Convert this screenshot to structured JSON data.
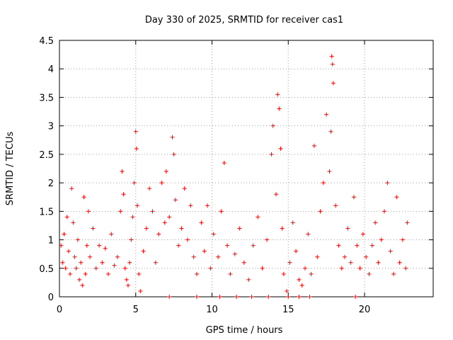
{
  "chart_data": {
    "type": "scatter",
    "title": "Day 330 of 2025, SRMTID for receiver cas1",
    "xlabel": "GPS time / hours",
    "ylabel": "SRMTID / TECUs",
    "xlim": [
      0,
      24.5
    ],
    "ylim": [
      0,
      4.5
    ],
    "xticks": [
      0,
      5,
      10,
      15,
      20
    ],
    "xtick_labels": [
      "0",
      "5",
      "10",
      "15",
      "20"
    ],
    "yticks": [
      0,
      0.5,
      1,
      1.5,
      2,
      2.5,
      3,
      3.5,
      4,
      4.5
    ],
    "ytick_labels": [
      "0",
      "0.5",
      "1",
      "1.5",
      "2",
      "2.5",
      "3",
      "3.5",
      "4",
      "4.5"
    ],
    "grid": true,
    "marker": "+",
    "color": "#ff0000",
    "series": [
      {
        "name": "cas1",
        "points": [
          [
            0.1,
            0.9
          ],
          [
            0.2,
            0.6
          ],
          [
            0.3,
            1.1
          ],
          [
            0.4,
            0.5
          ],
          [
            0.5,
            1.4
          ],
          [
            0.6,
            0.8
          ],
          [
            0.7,
            0.4
          ],
          [
            0.8,
            1.9
          ],
          [
            0.9,
            1.3
          ],
          [
            1.0,
            0.7
          ],
          [
            1.1,
            0.5
          ],
          [
            1.2,
            1.0
          ],
          [
            1.3,
            0.3
          ],
          [
            1.4,
            0.6
          ],
          [
            1.5,
            0.2
          ],
          [
            1.6,
            1.75
          ],
          [
            1.7,
            0.4
          ],
          [
            1.8,
            0.9
          ],
          [
            1.9,
            1.5
          ],
          [
            2.0,
            0.7
          ],
          [
            2.2,
            1.2
          ],
          [
            2.4,
            0.5
          ],
          [
            2.6,
            0.9
          ],
          [
            2.8,
            0.6
          ],
          [
            3.0,
            0.85
          ],
          [
            3.2,
            0.4
          ],
          [
            3.4,
            1.1
          ],
          [
            3.6,
            0.55
          ],
          [
            3.8,
            0.7
          ],
          [
            4.0,
            1.5
          ],
          [
            4.1,
            2.2
          ],
          [
            4.2,
            1.8
          ],
          [
            4.3,
            0.5
          ],
          [
            4.4,
            0.3
          ],
          [
            4.5,
            0.2
          ],
          [
            4.6,
            0.6
          ],
          [
            4.7,
            1.0
          ],
          [
            4.8,
            1.4
          ],
          [
            4.9,
            2.0
          ],
          [
            5.0,
            2.9
          ],
          [
            5.05,
            2.6
          ],
          [
            5.1,
            1.6
          ],
          [
            5.2,
            0.4
          ],
          [
            5.3,
            0.1
          ],
          [
            5.5,
            0.8
          ],
          [
            5.7,
            1.2
          ],
          [
            5.9,
            1.9
          ],
          [
            6.1,
            1.5
          ],
          [
            6.3,
            0.6
          ],
          [
            6.5,
            1.1
          ],
          [
            6.7,
            2.0
          ],
          [
            6.9,
            1.3
          ],
          [
            7.0,
            2.2
          ],
          [
            7.2,
            1.4
          ],
          [
            7.4,
            2.8
          ],
          [
            7.5,
            2.5
          ],
          [
            7.6,
            1.7
          ],
          [
            7.8,
            0.9
          ],
          [
            8.0,
            1.2
          ],
          [
            8.2,
            1.9
          ],
          [
            8.4,
            1.0
          ],
          [
            8.6,
            1.6
          ],
          [
            8.8,
            0.7
          ],
          [
            9.0,
            0.4
          ],
          [
            9.3,
            1.3
          ],
          [
            9.5,
            0.8
          ],
          [
            9.7,
            1.6
          ],
          [
            9.9,
            0.5
          ],
          [
            10.1,
            1.1
          ],
          [
            10.4,
            0.7
          ],
          [
            10.6,
            1.5
          ],
          [
            10.8,
            2.35
          ],
          [
            11.0,
            0.9
          ],
          [
            11.2,
            0.4
          ],
          [
            11.5,
            0.75
          ],
          [
            11.8,
            1.2
          ],
          [
            12.1,
            0.6
          ],
          [
            12.4,
            0.3
          ],
          [
            12.7,
            0.9
          ],
          [
            13.0,
            1.4
          ],
          [
            13.3,
            0.5
          ],
          [
            13.6,
            1.0
          ],
          [
            13.9,
            2.5
          ],
          [
            14.0,
            3.0
          ],
          [
            14.2,
            1.8
          ],
          [
            14.3,
            3.55
          ],
          [
            14.4,
            3.3
          ],
          [
            14.5,
            2.6
          ],
          [
            14.6,
            1.2
          ],
          [
            14.7,
            0.4
          ],
          [
            14.9,
            0.1
          ],
          [
            15.1,
            0.6
          ],
          [
            15.3,
            1.3
          ],
          [
            15.5,
            0.8
          ],
          [
            15.7,
            0.3
          ],
          [
            15.9,
            0.2
          ],
          [
            16.1,
            0.5
          ],
          [
            16.3,
            1.1
          ],
          [
            16.5,
            0.4
          ],
          [
            16.7,
            2.65
          ],
          [
            16.9,
            0.7
          ],
          [
            17.1,
            1.5
          ],
          [
            17.3,
            2.0
          ],
          [
            17.5,
            3.2
          ],
          [
            17.7,
            2.2
          ],
          [
            17.8,
            2.9
          ],
          [
            17.85,
            4.22
          ],
          [
            17.9,
            4.08
          ],
          [
            17.95,
            3.75
          ],
          [
            18.1,
            1.6
          ],
          [
            18.3,
            0.9
          ],
          [
            18.5,
            0.5
          ],
          [
            18.7,
            0.7
          ],
          [
            18.9,
            1.2
          ],
          [
            19.1,
            0.6
          ],
          [
            19.3,
            1.75
          ],
          [
            19.5,
            0.9
          ],
          [
            19.7,
            0.5
          ],
          [
            19.9,
            1.1
          ],
          [
            20.1,
            0.7
          ],
          [
            20.3,
            0.4
          ],
          [
            20.5,
            0.9
          ],
          [
            20.7,
            1.3
          ],
          [
            20.9,
            0.6
          ],
          [
            21.1,
            1.0
          ],
          [
            21.3,
            1.5
          ],
          [
            21.5,
            2.0
          ],
          [
            21.7,
            0.8
          ],
          [
            21.9,
            0.4
          ],
          [
            22.1,
            1.75
          ],
          [
            22.3,
            0.6
          ],
          [
            22.5,
            1.0
          ],
          [
            22.7,
            0.5
          ],
          [
            22.8,
            1.3
          ],
          [
            7.2,
            0.0
          ],
          [
            9.0,
            0.0
          ],
          [
            10.5,
            0.0
          ],
          [
            11.6,
            0.0
          ],
          [
            12.6,
            0.0
          ],
          [
            13.7,
            0.0
          ],
          [
            15.0,
            0.0
          ],
          [
            15.7,
            0.0
          ],
          [
            16.4,
            0.0
          ],
          [
            19.4,
            0.0
          ]
        ]
      }
    ]
  }
}
